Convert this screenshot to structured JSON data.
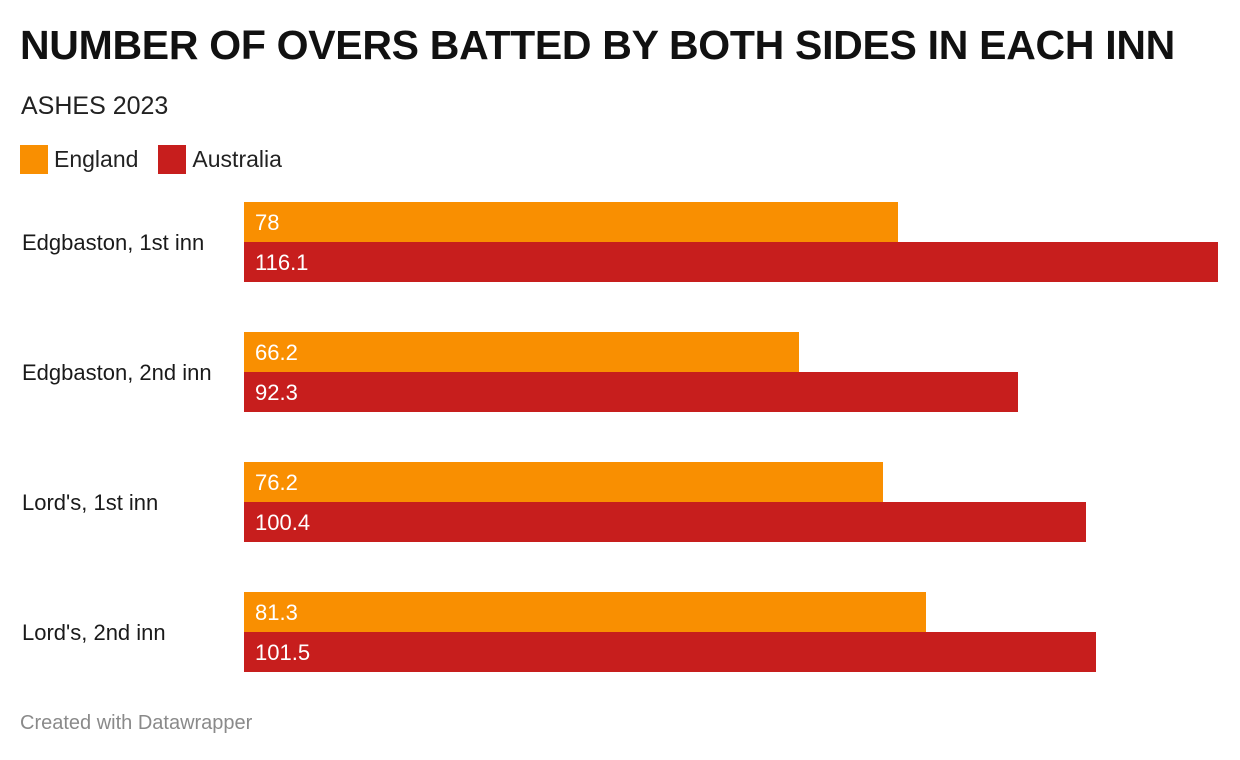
{
  "header": {
    "title": "NUMBER OF OVERS BATTED BY BOTH SIDES IN EACH INN",
    "subtitle": "ASHES 2023"
  },
  "footer": {
    "credit": "Created with Datawrapper"
  },
  "colors": {
    "England": "#f98f01",
    "Australia": "#c71e1d"
  },
  "chart_data": {
    "type": "bar",
    "orientation": "horizontal",
    "title": "NUMBER OF OVERS BATTED BY BOTH SIDES IN EACH INN",
    "subtitle": "ASHES 2023",
    "categories": [
      "Edgbaston, 1st inn",
      "Edgbaston, 2nd inn",
      "Lord's, 1st inn",
      "Lord's, 2nd inn"
    ],
    "series": [
      {
        "name": "England",
        "values": [
          78,
          66.2,
          76.2,
          81.3
        ],
        "labels": [
          "78",
          "66.2",
          "76.2",
          "81.3"
        ]
      },
      {
        "name": "Australia",
        "values": [
          116.1,
          92.3,
          100.4,
          101.5
        ],
        "labels": [
          "116.1",
          "92.3",
          "100.4",
          "101.5"
        ]
      }
    ],
    "xlim": [
      0,
      116.1
    ],
    "legend": "top-left",
    "grid": false,
    "xlabel": "",
    "ylabel": ""
  }
}
